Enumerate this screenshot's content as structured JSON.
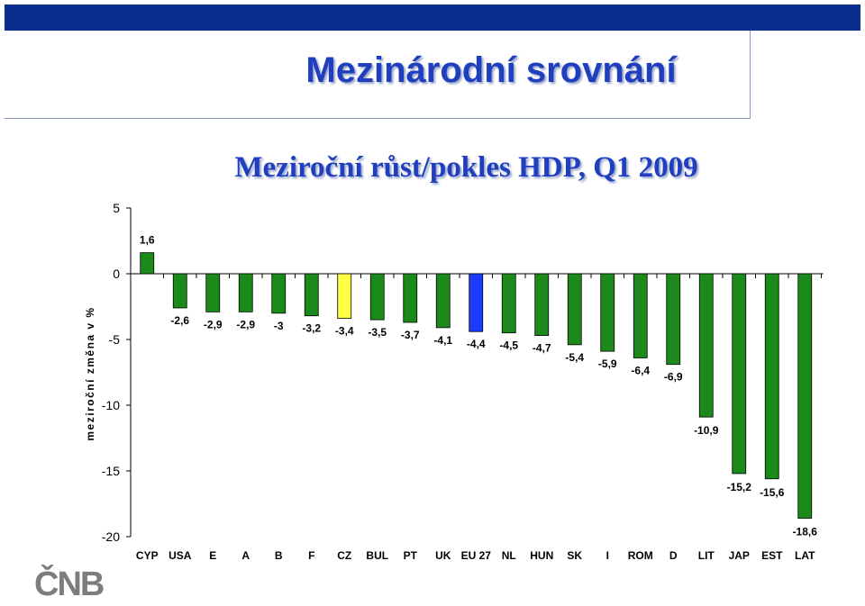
{
  "slide": {
    "title": "Mezinárodní srovnání",
    "logo_text": "ČNB"
  },
  "colors": {
    "header_bar": "#0b2d8f",
    "title": "#1f3fbf",
    "default_bar": "#1b8a1b",
    "highlight_yellow": "#ffff44",
    "highlight_blue": "#1a3cff"
  },
  "chart_data": {
    "type": "bar",
    "title": "Meziroční růst/pokles HDP, Q1 2009",
    "xlabel": "",
    "ylabel": "meziroční změna v %",
    "ylim": [
      -20,
      5
    ],
    "yticks": [
      5,
      0,
      -5,
      -10,
      -15,
      -20
    ],
    "ytick_labels": [
      "5",
      "0",
      "-5",
      "-10",
      "-15",
      "-20"
    ],
    "grid": false,
    "categories": [
      "CYP",
      "USA",
      "E",
      "A",
      "B",
      "F",
      "CZ",
      "BUL",
      "PT",
      "UK",
      "EU 27",
      "NL",
      "HUN",
      "SK",
      "I",
      "ROM",
      "D",
      "LIT",
      "JAP",
      "EST",
      "LAT"
    ],
    "values": [
      1.6,
      -2.6,
      -2.9,
      -2.9,
      -3,
      -3.2,
      -3.4,
      -3.5,
      -3.7,
      -4.1,
      -4.4,
      -4.5,
      -4.7,
      -5.4,
      -5.9,
      -6.4,
      -6.9,
      -10.9,
      -15.2,
      -15.6,
      -18.6
    ],
    "data_labels": [
      "1,6",
      "-2,6",
      "-2,9",
      "-2,9",
      "-3",
      "-3,2",
      "-3,4",
      "-3,5",
      "-3,7",
      "-4,1",
      "-4,4",
      "-4,5",
      "-4,7",
      "-5,4",
      "-5,9",
      "-6,4",
      "-6,9",
      "-10,9",
      "-15,2",
      "-15,6",
      "-18,6"
    ],
    "bar_colors": [
      "#1b8a1b",
      "#1b8a1b",
      "#1b8a1b",
      "#1b8a1b",
      "#1b8a1b",
      "#1b8a1b",
      "#ffff44",
      "#1b8a1b",
      "#1b8a1b",
      "#1b8a1b",
      "#1a3cff",
      "#1b8a1b",
      "#1b8a1b",
      "#1b8a1b",
      "#1b8a1b",
      "#1b8a1b",
      "#1b8a1b",
      "#1b8a1b",
      "#1b8a1b",
      "#1b8a1b",
      "#1b8a1b"
    ]
  }
}
